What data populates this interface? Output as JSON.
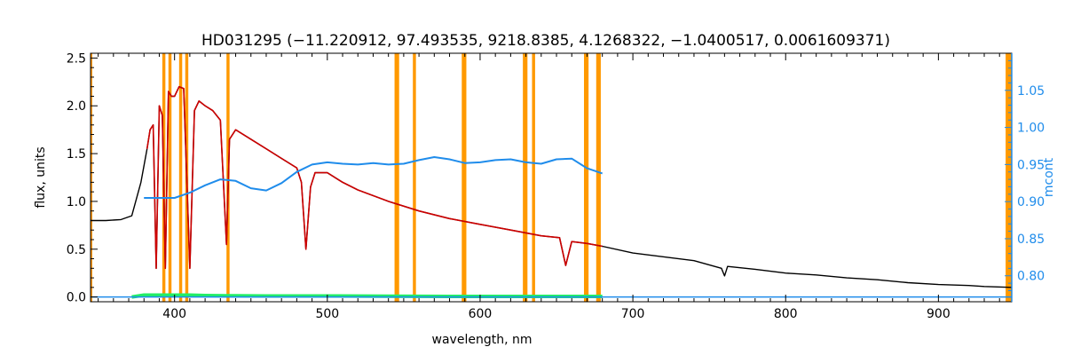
{
  "chart_data": {
    "type": "line",
    "title": "HD031295    (−11.220912, 97.493535, 9218.8385, 4.1268322, −1.0400517, 0.0061609371)",
    "xlabel": "wavelength, nm",
    "ylabel": "flux, units",
    "y2label": "mcont",
    "xlim": [
      345,
      948
    ],
    "ylim": [
      -0.05,
      2.55
    ],
    "y2lim": [
      0.765,
      1.1
    ],
    "x_ticks": [
      "400",
      "500",
      "600",
      "700",
      "800",
      "900"
    ],
    "x_tick_values": [
      400,
      500,
      600,
      700,
      800,
      900
    ],
    "y_ticks": [
      "0.0",
      "0.5",
      "1.0",
      "1.5",
      "2.0",
      "2.5"
    ],
    "y_tick_values": [
      0.0,
      0.5,
      1.0,
      1.5,
      2.0,
      2.5
    ],
    "y2_ticks": [
      "0.80",
      "0.85",
      "0.90",
      "0.95",
      "1.00",
      "1.05"
    ],
    "y2_tick_values": [
      0.8,
      0.85,
      0.9,
      0.95,
      1.0,
      1.05
    ],
    "grid": false,
    "colors": {
      "observed": "#000000",
      "model": "#cc0000",
      "continuum": "#1f8ceb",
      "residual": "#22ee66",
      "mask": "#ff9900",
      "right_axis": "#1f8ceb"
    },
    "mask_bands": [
      [
        344,
        346
      ],
      [
        392,
        394
      ],
      [
        396,
        398
      ],
      [
        403,
        405
      ],
      [
        407,
        409
      ],
      [
        434,
        436
      ],
      [
        544,
        547
      ],
      [
        556,
        558
      ],
      [
        588,
        591
      ],
      [
        628,
        631
      ],
      [
        634,
        636
      ],
      [
        668,
        671
      ],
      [
        676,
        679
      ],
      [
        944,
        948
      ]
    ],
    "series": [
      {
        "key": "observed",
        "axis": "left",
        "x": [
          345,
          355,
          365,
          372,
          378,
          382,
          384,
          386,
          388,
          390,
          392,
          394,
          396,
          398,
          400,
          403,
          406,
          410,
          413,
          416,
          420,
          425,
          430,
          434,
          436,
          440,
          450,
          460,
          470,
          480,
          483,
          486,
          489,
          492,
          500,
          510,
          520,
          540,
          560,
          580,
          600,
          620,
          640,
          652,
          656,
          660,
          670,
          680,
          700,
          740,
          758,
          760,
          762,
          780,
          800,
          820,
          840,
          860,
          880,
          900,
          920,
          930,
          948
        ],
        "y": [
          0.8,
          0.8,
          0.81,
          0.85,
          1.2,
          1.55,
          1.75,
          1.8,
          0.3,
          2.0,
          1.9,
          0.3,
          2.15,
          2.1,
          2.1,
          2.2,
          2.18,
          0.3,
          1.95,
          2.05,
          2.0,
          1.95,
          1.85,
          0.55,
          1.65,
          1.75,
          1.65,
          1.55,
          1.45,
          1.35,
          1.2,
          0.5,
          1.15,
          1.3,
          1.3,
          1.2,
          1.12,
          1.0,
          0.9,
          0.82,
          0.76,
          0.7,
          0.64,
          0.62,
          0.33,
          0.58,
          0.56,
          0.53,
          0.46,
          0.38,
          0.3,
          0.22,
          0.32,
          0.29,
          0.25,
          0.23,
          0.2,
          0.18,
          0.15,
          0.13,
          0.12,
          0.11,
          0.1
        ]
      },
      {
        "key": "model",
        "axis": "left",
        "x": [
          382,
          384,
          386,
          388,
          390,
          392,
          394,
          396,
          398,
          400,
          403,
          406,
          410,
          413,
          416,
          420,
          425,
          430,
          434,
          436,
          440,
          450,
          460,
          470,
          480,
          483,
          486,
          489,
          492,
          500,
          510,
          520,
          540,
          560,
          580,
          600,
          620,
          640,
          652,
          656,
          660,
          670,
          680
        ],
        "y": [
          1.55,
          1.75,
          1.8,
          0.3,
          2.0,
          1.9,
          0.3,
          2.15,
          2.1,
          2.1,
          2.2,
          2.18,
          0.3,
          1.95,
          2.05,
          2.0,
          1.95,
          1.85,
          0.55,
          1.65,
          1.75,
          1.65,
          1.55,
          1.45,
          1.35,
          1.2,
          0.5,
          1.15,
          1.3,
          1.3,
          1.2,
          1.12,
          1.0,
          0.9,
          0.82,
          0.76,
          0.7,
          0.64,
          0.62,
          0.33,
          0.58,
          0.56,
          0.53
        ]
      },
      {
        "key": "continuum",
        "axis": "right",
        "x": [
          380,
          390,
          400,
          410,
          420,
          430,
          440,
          450,
          460,
          470,
          480,
          490,
          500,
          510,
          520,
          530,
          540,
          550,
          560,
          570,
          580,
          590,
          600,
          610,
          620,
          630,
          640,
          650,
          660,
          670,
          680
        ],
        "y": [
          0.905,
          0.905,
          0.905,
          0.912,
          0.922,
          0.93,
          0.928,
          0.918,
          0.915,
          0.925,
          0.94,
          0.95,
          0.953,
          0.951,
          0.95,
          0.952,
          0.95,
          0.951,
          0.956,
          0.96,
          0.957,
          0.952,
          0.953,
          0.956,
          0.957,
          0.953,
          0.951,
          0.957,
          0.958,
          0.945,
          0.938
        ]
      },
      {
        "key": "residual",
        "axis": "left",
        "x": [
          372,
          380,
          390,
          400,
          410,
          420,
          440,
          460,
          480,
          500,
          540,
          580,
          620,
          660,
          680
        ],
        "y": [
          0.0,
          0.02,
          0.02,
          0.02,
          0.02,
          0.015,
          0.012,
          0.01,
          0.01,
          0.01,
          0.008,
          0.006,
          0.006,
          0.006,
          0.006
        ]
      },
      {
        "key": "baseline",
        "axis": "left",
        "x": [
          345,
          948
        ],
        "y": [
          0.0,
          0.0
        ]
      }
    ]
  }
}
